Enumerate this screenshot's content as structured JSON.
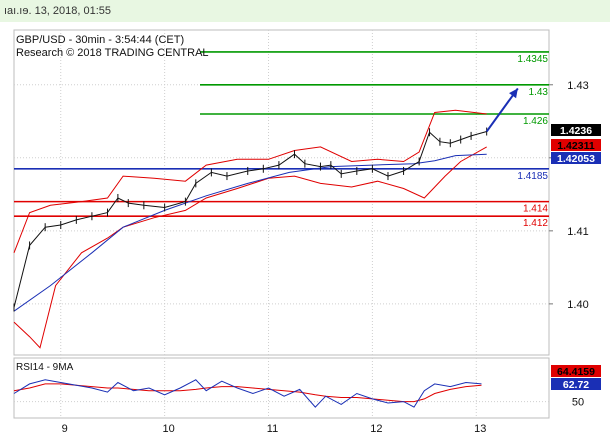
{
  "header": {
    "date_text": "ıaı.ıɘ. 13, 2018, 01:55"
  },
  "chart_data": {
    "type": "candlestick",
    "title": "GBP/USD - 30min - 3:54:44 (CET)",
    "subtitle": "Research © 2018 TRADING CENTRAL",
    "ylim": [
      1.393,
      1.4375
    ],
    "yticks": [
      {
        "value": 1.4,
        "label": "1.40"
      },
      {
        "value": 1.41,
        "label": "1.41"
      },
      {
        "value": 1.42,
        "label": "1.42"
      },
      {
        "value": 1.43,
        "label": "1.43"
      }
    ],
    "xticks": [
      {
        "x": 9,
        "label": "9"
      },
      {
        "x": 10,
        "label": "10"
      },
      {
        "x": 11,
        "label": "11"
      },
      {
        "x": 12,
        "label": "12"
      },
      {
        "x": 13,
        "label": "13"
      }
    ],
    "xlim": [
      8.55,
      13.7
    ],
    "levels": [
      {
        "value": 1.4345,
        "label": "1.4345",
        "type": "resistance",
        "color": "#009900"
      },
      {
        "value": 1.43,
        "label": "1.43",
        "type": "resistance",
        "color": "#009900"
      },
      {
        "value": 1.426,
        "label": "1.426",
        "type": "resistance",
        "color": "#009900"
      },
      {
        "value": 1.4185,
        "label": "1.4185",
        "type": "pivot",
        "color": "#1a2fb5"
      },
      {
        "value": 1.414,
        "label": "1.414",
        "type": "support",
        "color": "#e00000"
      },
      {
        "value": 1.412,
        "label": "1.412",
        "type": "support",
        "color": "#e00000"
      }
    ],
    "price_tags": [
      {
        "value": 1.4236,
        "label": "1.4236",
        "bg": "#000000",
        "fg": "#ffffff"
      },
      {
        "value": 1.42311,
        "label": "1.42311",
        "bg": "#e00000",
        "fg": "#000000"
      },
      {
        "value": 1.42053,
        "label": "1.42053",
        "bg": "#1a2fb5",
        "fg": "#ffffff"
      }
    ],
    "price": {
      "x": [
        8.55,
        8.7,
        8.85,
        9.0,
        9.15,
        9.3,
        9.45,
        9.55,
        9.65,
        9.8,
        10.0,
        10.2,
        10.3,
        10.45,
        10.6,
        10.8,
        10.95,
        11.1,
        11.25,
        11.35,
        11.5,
        11.6,
        11.7,
        11.85,
        12.0,
        12.15,
        12.3,
        12.45,
        12.55,
        12.65,
        12.75,
        12.85,
        12.95,
        13.1
      ],
      "close": [
        1.3995,
        1.408,
        1.4105,
        1.4108,
        1.4115,
        1.412,
        1.4125,
        1.4145,
        1.4138,
        1.4135,
        1.4132,
        1.414,
        1.4165,
        1.418,
        1.4175,
        1.4182,
        1.4185,
        1.419,
        1.4205,
        1.4192,
        1.4188,
        1.419,
        1.4178,
        1.4182,
        1.4185,
        1.4175,
        1.4182,
        1.4195,
        1.4235,
        1.4222,
        1.422,
        1.4225,
        1.423,
        1.4236
      ]
    },
    "moving_average": {
      "x": [
        8.55,
        8.9,
        9.3,
        9.6,
        10.0,
        10.4,
        10.8,
        11.2,
        11.6,
        12.0,
        12.4,
        12.6,
        12.8,
        13.1
      ],
      "value": [
        1.399,
        1.4025,
        1.407,
        1.4105,
        1.4128,
        1.4148,
        1.4165,
        1.418,
        1.4188,
        1.419,
        1.4192,
        1.4196,
        1.4203,
        1.4205
      ]
    },
    "bollinger_upper": {
      "x": [
        8.55,
        8.7,
        8.9,
        9.2,
        9.45,
        9.6,
        9.9,
        10.2,
        10.4,
        10.7,
        11.0,
        11.25,
        11.5,
        11.8,
        12.05,
        12.3,
        12.45,
        12.6,
        12.8,
        13.1
      ],
      "value": [
        1.407,
        1.4125,
        1.4135,
        1.414,
        1.4145,
        1.4175,
        1.4172,
        1.4168,
        1.419,
        1.4198,
        1.4198,
        1.421,
        1.4215,
        1.4195,
        1.4198,
        1.4195,
        1.4208,
        1.4262,
        1.4265,
        1.426
      ]
    },
    "bollinger_lower": {
      "x": [
        8.55,
        8.7,
        8.8,
        8.95,
        9.2,
        9.45,
        9.6,
        9.9,
        10.2,
        10.4,
        10.7,
        11.0,
        11.25,
        11.5,
        11.8,
        12.05,
        12.3,
        12.5,
        12.7,
        12.85,
        13.1
      ],
      "value": [
        1.3975,
        1.3955,
        1.394,
        1.4025,
        1.407,
        1.409,
        1.4105,
        1.4118,
        1.4128,
        1.4145,
        1.4158,
        1.4172,
        1.4175,
        1.4165,
        1.416,
        1.4168,
        1.4158,
        1.4145,
        1.4175,
        1.4195,
        1.4215
      ]
    },
    "forecast_arrow": {
      "from": [
        13.1,
        1.4236
      ],
      "to": [
        13.4,
        1.4295
      ],
      "color": "#1a2fb5"
    },
    "rsi": {
      "label": "RSI14 - 9MA",
      "ylim": [
        38,
        82
      ],
      "ytick": {
        "value": 50,
        "label": "50"
      },
      "tags": [
        {
          "value": 64.4159,
          "label": "64.4159",
          "bg": "#e00000",
          "fg": "#000000"
        },
        {
          "value": 62.72,
          "label": "62.72",
          "bg": "#1a2fb5",
          "fg": "#ffffff"
        }
      ],
      "x": [
        8.55,
        8.7,
        8.85,
        9.0,
        9.15,
        9.3,
        9.45,
        9.55,
        9.7,
        9.85,
        10.0,
        10.15,
        10.3,
        10.4,
        10.55,
        10.7,
        10.85,
        11.0,
        11.15,
        11.3,
        11.45,
        11.55,
        11.7,
        11.85,
        12.0,
        12.15,
        12.3,
        12.4,
        12.5,
        12.6,
        12.75,
        12.9,
        13.05
      ],
      "value": [
        56,
        63,
        66,
        64,
        62,
        60,
        57,
        64,
        58,
        60,
        55,
        60,
        66,
        58,
        65,
        60,
        56,
        60,
        54,
        59,
        46,
        54,
        48,
        56,
        52,
        49,
        50,
        46,
        58,
        63,
        61,
        64,
        63
      ],
      "ma": [
        58,
        60,
        63,
        63,
        62,
        61,
        60,
        60,
        59,
        58,
        58,
        58,
        59,
        60,
        61,
        61,
        60,
        59,
        58,
        57,
        55,
        54,
        53,
        53,
        52,
        51,
        50,
        50,
        52,
        56,
        59,
        61,
        62
      ]
    }
  }
}
